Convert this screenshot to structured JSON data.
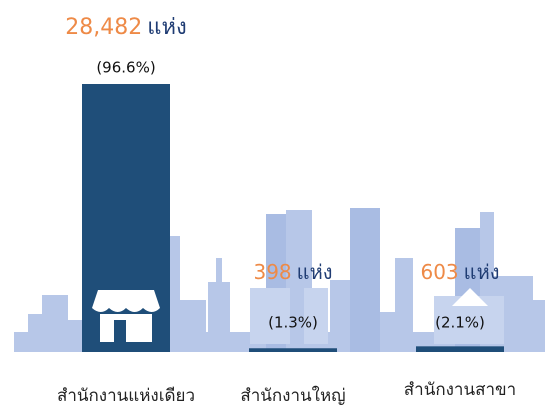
{
  "chart_data": {
    "type": "bar",
    "categories": [
      "สำนักงานแห่งเดียว",
      "สำนักงานใหญ่",
      "สำนักงานสาขา"
    ],
    "values": [
      28482,
      398,
      603
    ],
    "value_labels": [
      "28,482",
      "398",
      "603"
    ],
    "unit": "แห่ง",
    "share_labels": [
      "(96.6%)",
      "(1.3%)",
      "(2.1%)"
    ],
    "color": "#1f4e79"
  }
}
